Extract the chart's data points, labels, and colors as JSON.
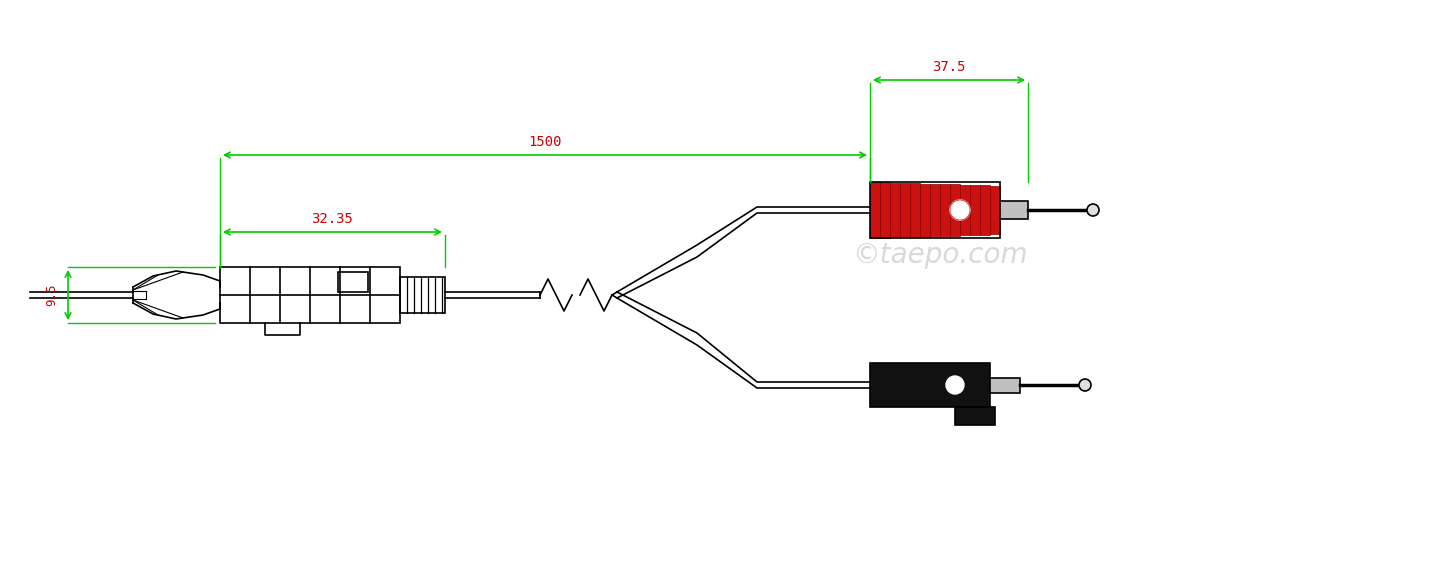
{
  "bg_color": "#ffffff",
  "line_color": "#000000",
  "dim_color": "#00cc00",
  "dim_text_color": "#cc0000",
  "watermark": "©taepo.com",
  "dim_95": "9.5",
  "dim_3235": "32.35",
  "dim_1500": "1500",
  "dim_375": "37.5",
  "red_color": "#cc1111",
  "dark_red_color": "#880000",
  "black_color": "#111111",
  "gray_color": "#aaaaaa",
  "light_gray": "#cccccc"
}
